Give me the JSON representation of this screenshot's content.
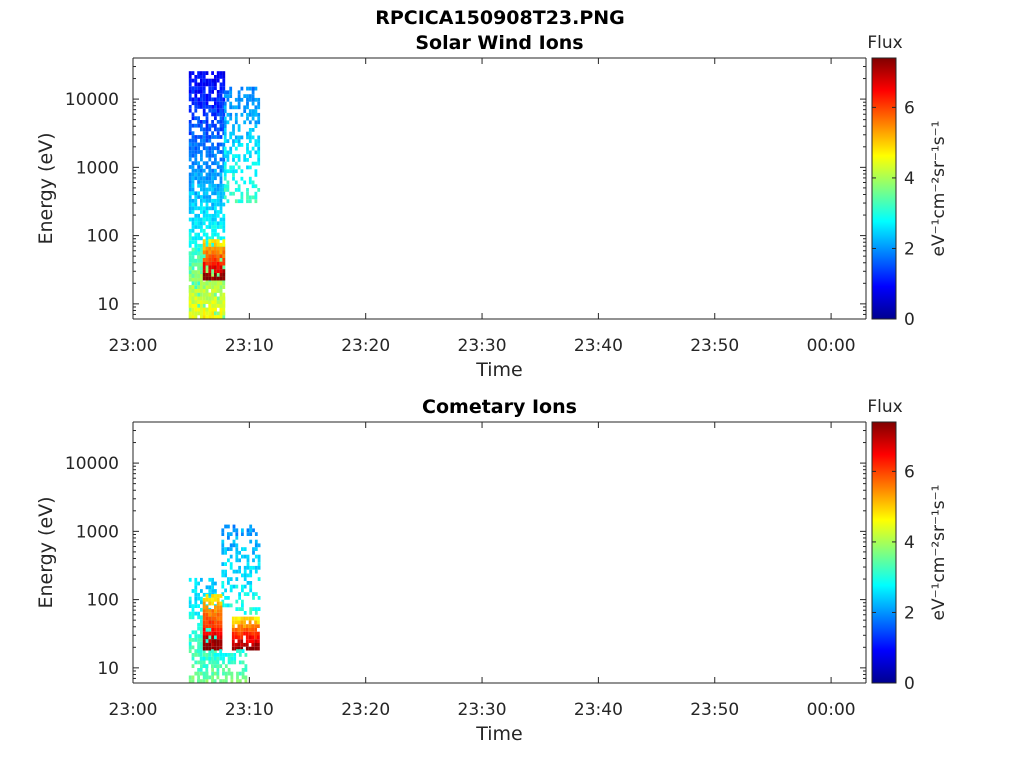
{
  "figure": {
    "title": "RPCICA150908T23.PNG"
  },
  "chart_data": [
    {
      "type": "heatmap",
      "title": "Solar Wind Ions",
      "xlabel": "Time",
      "ylabel": "Energy (eV)",
      "y_scale": "log",
      "x_ticks": [
        "23:00",
        "23:10",
        "23:20",
        "23:30",
        "23:40",
        "23:50",
        "00:00"
      ],
      "y_ticks": [
        "10",
        "100",
        "1000",
        "10000"
      ],
      "xlim": [
        "23:00",
        "00:03"
      ],
      "ylim": [
        6,
        40000
      ],
      "colorbar": {
        "label": "Flux",
        "unit": "eV⁻¹cm⁻²sr⁻¹s⁻¹",
        "ticks": [
          "0",
          "2",
          "4",
          "6"
        ],
        "range": [
          0,
          7.4
        ],
        "colormap": "jet"
      },
      "data_regions": [
        {
          "t_start": "23:04.8",
          "t_end": "23:07.8",
          "e_min": 6,
          "e_max": 25000,
          "flux_low": 0.8,
          "flux_high": 3.8,
          "sampling": 0.75
        },
        {
          "t_start": "23:07.8",
          "t_end": "23:10.7",
          "e_min": 300,
          "e_max": 14000,
          "flux_low": 1.8,
          "flux_high": 3.2,
          "sampling": 0.45
        },
        {
          "t_start": "23:04.8",
          "t_end": "23:07.8",
          "e_min": 6,
          "e_max": 60,
          "flux_low": 3.2,
          "flux_high": 4.6,
          "sampling": 0.85
        },
        {
          "t_start": "23:06.0",
          "t_end": "23:07.8",
          "e_min": 22,
          "e_max": 80,
          "flux_low": 4.6,
          "flux_high": 7.4,
          "sampling": 0.9
        }
      ]
    },
    {
      "type": "heatmap",
      "title": "Cometary Ions",
      "xlabel": "Time",
      "ylabel": "Energy (eV)",
      "y_scale": "log",
      "x_ticks": [
        "23:00",
        "23:10",
        "23:20",
        "23:30",
        "23:40",
        "23:50",
        "00:00"
      ],
      "y_ticks": [
        "10",
        "100",
        "1000",
        "10000"
      ],
      "xlim": [
        "23:00",
        "00:03"
      ],
      "ylim": [
        6,
        40000
      ],
      "colorbar": {
        "label": "Flux",
        "unit": "eV⁻¹cm⁻²sr⁻¹s⁻¹",
        "ticks": [
          "0",
          "2",
          "4",
          "6"
        ],
        "range": [
          0,
          7.4
        ],
        "colormap": "jet"
      },
      "data_regions": [
        {
          "t_start": "23:04.8",
          "t_end": "23:07.0",
          "e_min": 6,
          "e_max": 200,
          "flux_low": 2.4,
          "flux_high": 3.6,
          "sampling": 0.55
        },
        {
          "t_start": "23:07.6",
          "t_end": "23:10.8",
          "e_min": 60,
          "e_max": 1200,
          "flux_low": 2.0,
          "flux_high": 3.0,
          "sampling": 0.4
        },
        {
          "t_start": "23:06.0",
          "t_end": "23:07.5",
          "e_min": 18,
          "e_max": 120,
          "flux_low": 4.5,
          "flux_high": 7.4,
          "sampling": 0.9
        },
        {
          "t_start": "23:08.5",
          "t_end": "23:10.8",
          "e_min": 18,
          "e_max": 55,
          "flux_low": 4.5,
          "flux_high": 7.4,
          "sampling": 0.9
        },
        {
          "t_start": "23:05.5",
          "t_end": "23:09.6",
          "e_min": 6,
          "e_max": 18,
          "flux_low": 2.8,
          "flux_high": 3.6,
          "sampling": 0.5
        }
      ]
    }
  ]
}
